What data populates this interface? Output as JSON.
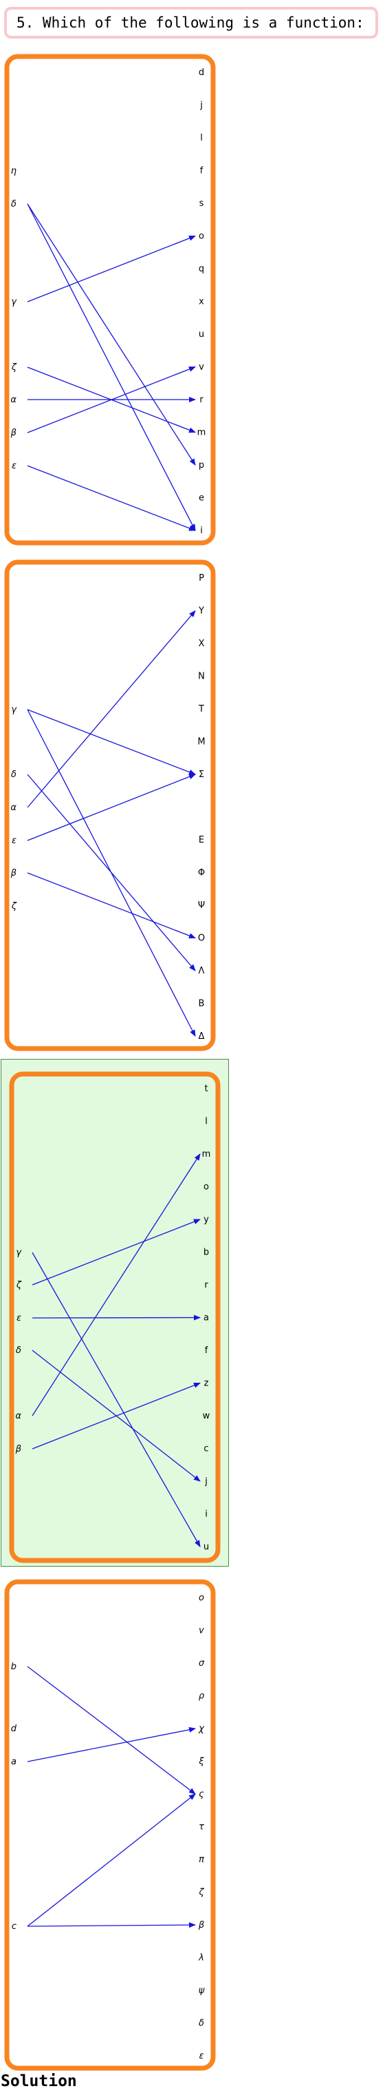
{
  "question": {
    "text": "5. Which of the following is a function:"
  },
  "solution_label": "Solution",
  "colors": {
    "frame": "#f88420",
    "arrow": "#1515dd",
    "highlight_fill": "#e1f9dd",
    "question_border": "#f7c9cc"
  },
  "panels": [
    {
      "highlighted": false,
      "left": [
        "η",
        "δ",
        "γ",
        "ζ",
        "α",
        "β",
        "ε"
      ],
      "right": [
        "d",
        "j",
        "l",
        "f",
        "s",
        "o",
        "q",
        "x",
        "u",
        "v",
        "r",
        "m",
        "p",
        "e",
        "i"
      ],
      "arrows": [
        [
          "δ",
          "p"
        ],
        [
          "δ",
          "i"
        ],
        [
          "γ",
          "o"
        ],
        [
          "ζ",
          "m"
        ],
        [
          "α",
          "r"
        ],
        [
          "β",
          "v"
        ],
        [
          "ε",
          "i"
        ]
      ]
    },
    {
      "highlighted": false,
      "left": [
        "γ",
        "δ",
        "α",
        "ε",
        "β",
        "ζ"
      ],
      "right": [
        "P",
        "Y",
        "X",
        "N",
        "T",
        "M",
        "Σ",
        "E",
        "Φ",
        "Ψ",
        "O",
        "Λ",
        "B",
        "Δ"
      ],
      "arrows": [
        [
          "γ",
          "Σ"
        ],
        [
          "γ",
          "Δ"
        ],
        [
          "δ",
          "Λ"
        ],
        [
          "α",
          "Y"
        ],
        [
          "ε",
          "Σ"
        ],
        [
          "β",
          "O"
        ]
      ]
    },
    {
      "highlighted": true,
      "left": [
        "γ",
        "ζ",
        "ε",
        "δ",
        "α",
        "β"
      ],
      "right": [
        "t",
        "l",
        "m",
        "o",
        "y",
        "b",
        "r",
        "a",
        "f",
        "z",
        "w",
        "c",
        "j",
        "i",
        "u"
      ],
      "arrows": [
        [
          "γ",
          "u"
        ],
        [
          "ζ",
          "y"
        ],
        [
          "ε",
          "a"
        ],
        [
          "δ",
          "j"
        ],
        [
          "α",
          "m"
        ],
        [
          "β",
          "z"
        ]
      ]
    },
    {
      "highlighted": false,
      "left": [
        "b",
        "d",
        "a",
        "c"
      ],
      "right": [
        "o",
        "v",
        "σ",
        "ρ",
        "χ",
        "ξ",
        "ς",
        "τ",
        "π",
        "ζ",
        "β",
        "λ",
        "ψ",
        "δ",
        "ε"
      ],
      "arrows": [
        [
          "b",
          "ς"
        ],
        [
          "a",
          "χ"
        ],
        [
          "c",
          "ς"
        ],
        [
          "c",
          "β"
        ]
      ]
    }
  ]
}
